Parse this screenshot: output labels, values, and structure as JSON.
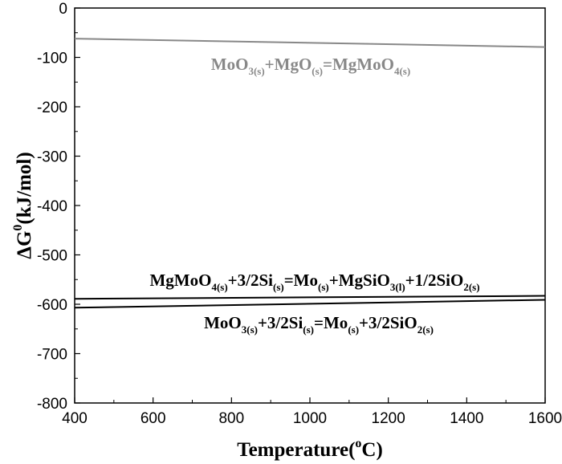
{
  "chart_data": {
    "type": "line",
    "xlabel": "Temperature(",
    "xlabel_sup": "o",
    "xlabel_end": "C)",
    "ylabel": "ΔG",
    "ylabel_sup": "0",
    "ylabel_end": "(kJ/mol)",
    "xlim": [
      400,
      1600
    ],
    "ylim": [
      -800,
      0
    ],
    "x_ticks": [
      400,
      600,
      800,
      1000,
      1200,
      1400,
      1600
    ],
    "y_ticks": [
      0,
      -100,
      -200,
      -300,
      -400,
      -500,
      -600,
      -700,
      -800
    ],
    "grid": false,
    "series": [
      {
        "color": "#888888",
        "x": [
          400,
          1600
        ],
        "y": [
          -62,
          -79
        ],
        "annotation": [
          {
            "t": "MoO",
            "s": false
          },
          {
            "t": "3(s)",
            "s": true
          },
          {
            "t": "+MgO",
            "s": false
          },
          {
            "t": "(s)",
            "s": true
          },
          {
            "t": "=MgMoO",
            "s": false
          },
          {
            "t": "4(s)",
            "s": true
          }
        ]
      },
      {
        "color": "#000000",
        "x": [
          400,
          1600
        ],
        "y": [
          -589,
          -583
        ],
        "annotation": [
          {
            "t": "MgMoO",
            "s": false
          },
          {
            "t": "4(s)",
            "s": true
          },
          {
            "t": "+3/2Si",
            "s": false
          },
          {
            "t": "(s)",
            "s": true
          },
          {
            "t": "=Mo",
            "s": false
          },
          {
            "t": "(s)",
            "s": true
          },
          {
            "t": "+MgSiO",
            "s": false
          },
          {
            "t": "3(l)",
            "s": true
          },
          {
            "t": "+1/2SiO",
            "s": false
          },
          {
            "t": "2(s)",
            "s": true
          }
        ]
      },
      {
        "color": "#000000",
        "x": [
          400,
          1600
        ],
        "y": [
          -607,
          -591
        ],
        "annotation": [
          {
            "t": "MoO",
            "s": false
          },
          {
            "t": "3(s)",
            "s": true
          },
          {
            "t": "+3/2Si",
            "s": false
          },
          {
            "t": "(s)",
            "s": true
          },
          {
            "t": "=Mo",
            "s": false
          },
          {
            "t": "(s)",
            "s": true
          },
          {
            "t": "+3/2SiO",
            "s": false
          },
          {
            "t": "2(s)",
            "s": true
          }
        ]
      }
    ]
  }
}
